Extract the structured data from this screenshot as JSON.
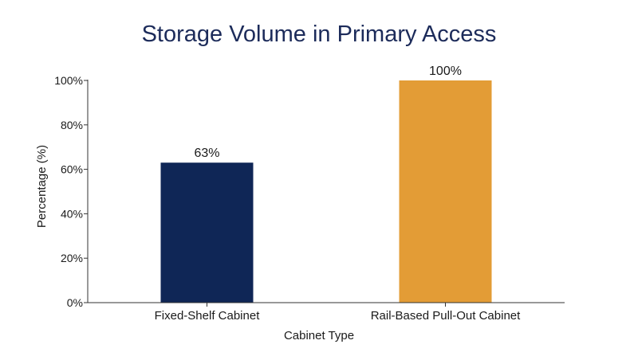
{
  "chart_data": {
    "type": "bar",
    "title": "Storage Volume in Primary Access",
    "xlabel": "Cabinet Type",
    "ylabel": "Percentage (%)",
    "categories": [
      "Fixed-Shelf Cabinet",
      "Rail-Based Pull-Out Cabinet"
    ],
    "values": [
      63,
      100
    ],
    "data_labels": [
      "63%",
      "100%"
    ],
    "bar_colors": [
      "#0f2656",
      "#e39c36"
    ],
    "ylim": [
      0,
      100
    ],
    "yticks": [
      0,
      20,
      40,
      60,
      80,
      100
    ],
    "ytick_labels": [
      "0%",
      "20%",
      "40%",
      "60%",
      "80%",
      "100%"
    ],
    "grid": false,
    "legend": "none"
  }
}
